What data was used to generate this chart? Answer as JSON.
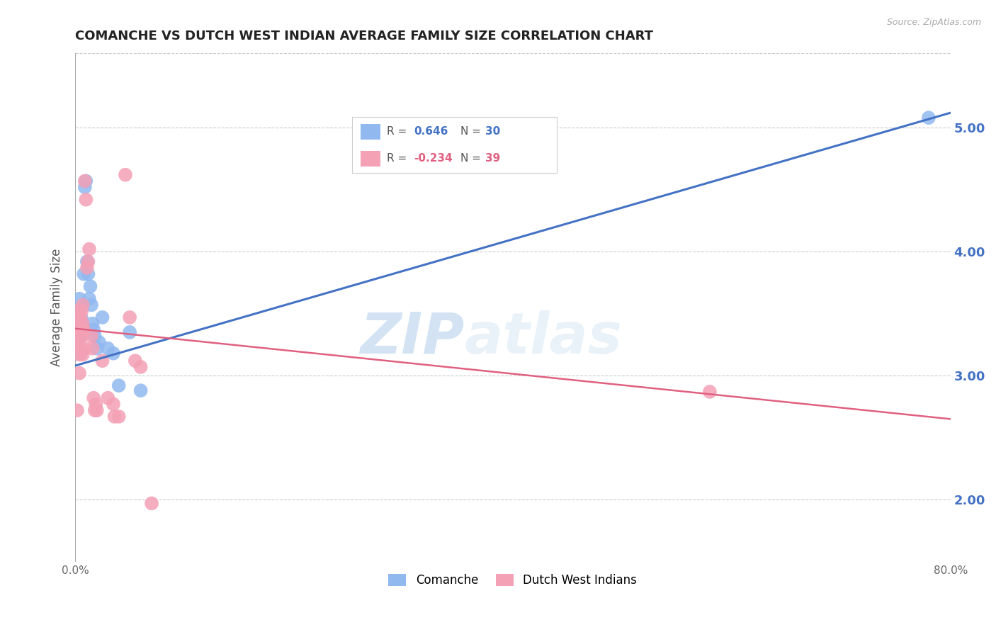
{
  "title": "COMANCHE VS DUTCH WEST INDIAN AVERAGE FAMILY SIZE CORRELATION CHART",
  "source": "Source: ZipAtlas.com",
  "ylabel": "Average Family Size",
  "xlim": [
    0.0,
    0.8
  ],
  "ylim": [
    1.5,
    5.6
  ],
  "yticks": [
    2.0,
    3.0,
    4.0,
    5.0
  ],
  "xticks": [
    0.0,
    0.1,
    0.2,
    0.3,
    0.4,
    0.5,
    0.6,
    0.7,
    0.8
  ],
  "xtick_labels": [
    "0.0%",
    "",
    "",
    "",
    "",
    "",
    "",
    "",
    "80.0%"
  ],
  "right_ytick_color": "#4472c4",
  "comanche_color": "#91b9f0",
  "dutch_color": "#f4a0b5",
  "comanche_line_color": "#4472c4",
  "dutch_line_color": "#e06080",
  "grid_color": "#cccccc",
  "background_color": "#ffffff",
  "watermark_zip": "ZIP",
  "watermark_atlas": "atlas",
  "legend_label_comanche": "Comanche",
  "legend_label_dutch": "Dutch West Indians",
  "blue_line": [
    0.0,
    3.08,
    0.8,
    5.12
  ],
  "pink_line": [
    0.0,
    3.38,
    0.8,
    2.65
  ],
  "comanche_points": [
    [
      0.001,
      3.25
    ],
    [
      0.002,
      3.42
    ],
    [
      0.003,
      3.52
    ],
    [
      0.003,
      3.22
    ],
    [
      0.004,
      3.62
    ],
    [
      0.004,
      3.32
    ],
    [
      0.005,
      3.18
    ],
    [
      0.005,
      3.32
    ],
    [
      0.006,
      3.46
    ],
    [
      0.007,
      3.56
    ],
    [
      0.008,
      3.82
    ],
    [
      0.009,
      4.52
    ],
    [
      0.01,
      4.57
    ],
    [
      0.011,
      3.92
    ],
    [
      0.012,
      3.82
    ],
    [
      0.013,
      3.62
    ],
    [
      0.014,
      3.72
    ],
    [
      0.015,
      3.57
    ],
    [
      0.016,
      3.42
    ],
    [
      0.017,
      3.37
    ],
    [
      0.018,
      3.32
    ],
    [
      0.02,
      3.22
    ],
    [
      0.022,
      3.27
    ],
    [
      0.025,
      3.47
    ],
    [
      0.03,
      3.22
    ],
    [
      0.035,
      3.18
    ],
    [
      0.04,
      2.92
    ],
    [
      0.05,
      3.35
    ],
    [
      0.06,
      2.88
    ],
    [
      0.78,
      5.08
    ]
  ],
  "dutch_points": [
    [
      0.001,
      3.32
    ],
    [
      0.002,
      3.42
    ],
    [
      0.002,
      3.52
    ],
    [
      0.003,
      3.27
    ],
    [
      0.003,
      3.37
    ],
    [
      0.004,
      3.17
    ],
    [
      0.004,
      3.02
    ],
    [
      0.005,
      3.47
    ],
    [
      0.005,
      3.22
    ],
    [
      0.006,
      3.52
    ],
    [
      0.006,
      3.32
    ],
    [
      0.007,
      3.57
    ],
    [
      0.007,
      3.42
    ],
    [
      0.008,
      3.37
    ],
    [
      0.009,
      3.22
    ],
    [
      0.009,
      4.57
    ],
    [
      0.01,
      4.42
    ],
    [
      0.011,
      3.87
    ],
    [
      0.012,
      3.92
    ],
    [
      0.013,
      4.02
    ],
    [
      0.015,
      3.32
    ],
    [
      0.016,
      3.22
    ],
    [
      0.017,
      2.82
    ],
    [
      0.018,
      2.72
    ],
    [
      0.019,
      2.77
    ],
    [
      0.02,
      2.72
    ],
    [
      0.025,
      3.12
    ],
    [
      0.03,
      2.82
    ],
    [
      0.035,
      2.77
    ],
    [
      0.036,
      2.67
    ],
    [
      0.04,
      2.67
    ],
    [
      0.046,
      4.62
    ],
    [
      0.05,
      3.47
    ],
    [
      0.055,
      3.12
    ],
    [
      0.06,
      3.07
    ],
    [
      0.07,
      1.97
    ],
    [
      0.58,
      2.87
    ],
    [
      0.002,
      2.72
    ],
    [
      0.007,
      3.17
    ]
  ]
}
